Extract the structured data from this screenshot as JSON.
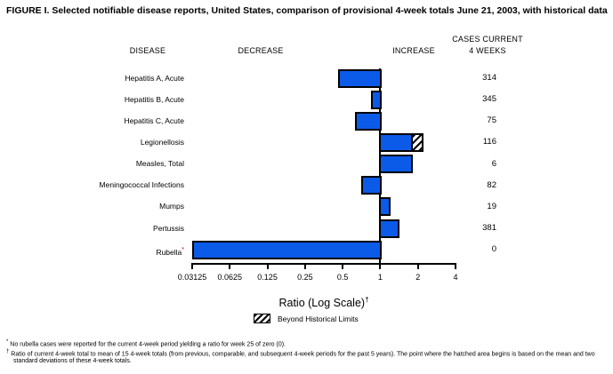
{
  "title": "FIGURE I. Selected notifiable disease reports, United States, comparison of provisional 4-week totals June 21, 2003, with historical data",
  "columns": {
    "disease": "DISEASE",
    "decrease": "DECREASE",
    "increase": "INCREASE",
    "cases_line1": "CASES CURRENT",
    "cases_line2": "4 WEEKS"
  },
  "chart_data": {
    "type": "bar",
    "orientation": "horizontal",
    "scale": "log2",
    "baseline": 1,
    "axis_range": [
      0.03125,
      4
    ],
    "axis_ticks": [
      "0.03125",
      "0.0625",
      "0.125",
      "0.25",
      "0.5",
      "1",
      "2",
      "4"
    ],
    "xlabel": "Ratio (Log Scale)",
    "xlabel_marker": "†",
    "rows": [
      {
        "disease": "Hepatitis A, Acute",
        "cases": "314",
        "ratio": 0.46
      },
      {
        "disease": "Hepatitis B, Acute",
        "cases": "345",
        "ratio": 0.84
      },
      {
        "disease": "Hepatitis C, Acute",
        "cases": "75",
        "ratio": 0.63
      },
      {
        "disease": "Legionellosis",
        "cases": "116",
        "ratio": 2.16,
        "beyond_historical_from": 1.75
      },
      {
        "disease": "Measles, Total",
        "cases": "6",
        "ratio": 1.83
      },
      {
        "disease": "Meningococcal Infections",
        "cases": "82",
        "ratio": 0.7
      },
      {
        "disease": "Mumps",
        "cases": "19",
        "ratio": 1.2
      },
      {
        "disease": "Pertussis",
        "cases": "381",
        "ratio": 1.43
      },
      {
        "disease": "Rubella",
        "marker": "*",
        "cases": "0",
        "ratio": 0.03125
      }
    ],
    "legend": [
      {
        "label": "Beyond Historical Limits",
        "swatch": "hatched"
      }
    ]
  },
  "colors": {
    "bar": "#0b5be8",
    "bar_border": "#000000",
    "marker_red": "#c00000"
  },
  "footnotes": [
    {
      "marker": "*",
      "text": "No rubella cases were reported for the current 4-week period yielding a ratio for week 25 of zero (0)."
    },
    {
      "marker": "†",
      "text": "Ratio of current 4-week total to mean of 15 4-week totals (from previous, comparable, and subsequent 4-week periods for the past 5 years). The point where the hatched area begins is based on the mean and two standard deviations of these 4-week totals."
    }
  ]
}
